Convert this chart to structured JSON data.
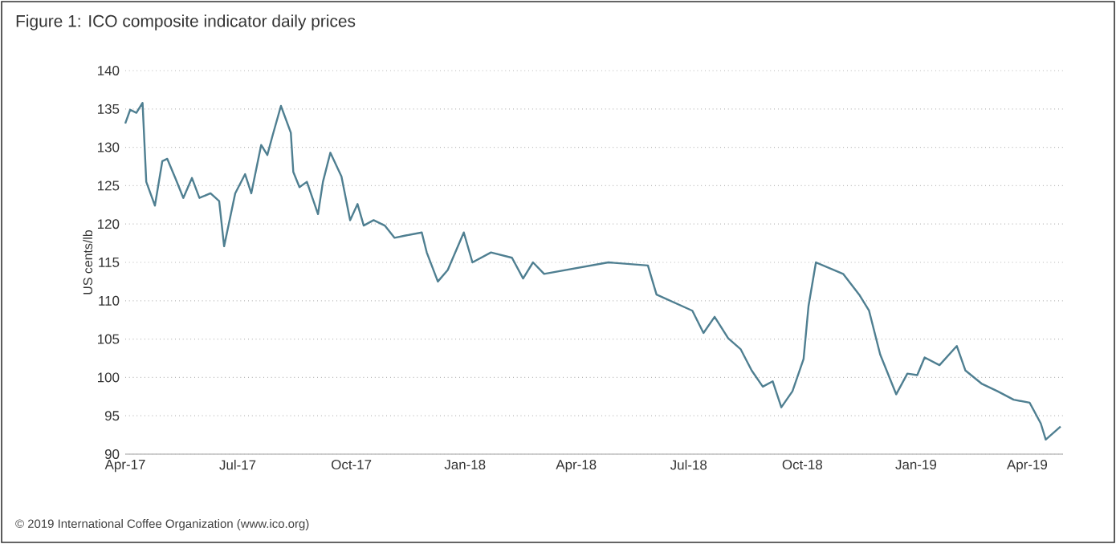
{
  "chart_data": {
    "type": "line",
    "title": "Figure 1: ICO composite indicator daily prices",
    "ylabel": "US cents/lb",
    "annotations": [
      "© 2019 International Coffee Organization (www.ico.org)"
    ],
    "xlim": [
      "2017-04-01",
      "2019-04-30"
    ],
    "xticks": [
      {
        "value": "2017-04-01",
        "label": "Apr-17"
      },
      {
        "value": "2017-07-01",
        "label": "Jul-17"
      },
      {
        "value": "2017-10-01",
        "label": "Oct-17"
      },
      {
        "value": "2018-01-01",
        "label": "Jan-18"
      },
      {
        "value": "2018-04-01",
        "label": "Apr-18"
      },
      {
        "value": "2018-07-01",
        "label": "Jul-18"
      },
      {
        "value": "2018-10-01",
        "label": "Oct-18"
      },
      {
        "value": "2019-01-01",
        "label": "Jan-19"
      },
      {
        "value": "2019-04-01",
        "label": "Apr-19"
      }
    ],
    "ylim": [
      90,
      140
    ],
    "yticks": [
      90,
      95,
      100,
      105,
      110,
      115,
      120,
      125,
      130,
      135,
      140
    ],
    "grid": "y",
    "series": [
      {
        "color": "#4f7f91",
        "x": [
          "2017-04-01",
          "2017-04-05",
          "2017-04-10",
          "2017-04-15",
          "2017-04-18",
          "2017-04-25",
          "2017-05-01",
          "2017-05-05",
          "2017-05-12",
          "2017-05-18",
          "2017-05-25",
          "2017-05-31",
          "2017-06-09",
          "2017-06-16",
          "2017-06-20",
          "2017-06-29",
          "2017-07-07",
          "2017-07-12",
          "2017-07-20",
          "2017-07-25",
          "2017-07-29",
          "2017-08-05",
          "2017-08-13",
          "2017-08-15",
          "2017-08-20",
          "2017-08-26",
          "2017-09-04",
          "2017-09-08",
          "2017-09-14",
          "2017-09-23",
          "2017-09-30",
          "2017-10-06",
          "2017-10-11",
          "2017-10-19",
          "2017-10-28",
          "2017-11-05",
          "2017-11-14",
          "2017-11-27",
          "2017-12-01",
          "2017-12-10",
          "2017-12-18",
          "2017-12-31",
          "2018-01-07",
          "2018-01-22",
          "2018-02-08",
          "2018-02-17",
          "2018-02-25",
          "2018-03-06",
          "2018-04-27",
          "2018-05-29",
          "2018-06-05",
          "2018-07-04",
          "2018-07-13",
          "2018-07-22",
          "2018-08-02",
          "2018-08-12",
          "2018-08-21",
          "2018-08-30",
          "2018-09-07",
          "2018-09-14",
          "2018-09-23",
          "2018-10-02",
          "2018-10-06",
          "2018-10-12",
          "2018-11-03",
          "2018-11-16",
          "2018-11-24",
          "2018-12-03",
          "2018-12-16",
          "2018-12-25",
          "2019-01-02",
          "2019-01-08",
          "2019-01-20",
          "2019-02-03",
          "2019-02-10",
          "2019-02-23",
          "2019-03-08",
          "2019-03-21",
          "2019-04-03",
          "2019-04-12",
          "2019-04-16",
          "2019-04-28"
        ],
        "values": [
          133.1,
          134.9,
          134.5,
          135.8,
          125.5,
          122.4,
          128.2,
          128.5,
          125.8,
          123.4,
          126,
          123.4,
          124,
          123,
          117.1,
          124,
          126.5,
          124,
          130.3,
          129,
          131.4,
          135.4,
          131.9,
          126.8,
          124.8,
          125.5,
          121.3,
          125.5,
          129.3,
          126.2,
          120.5,
          122.6,
          119.8,
          120.5,
          119.8,
          118.2,
          118.5,
          118.9,
          116.3,
          112.5,
          114,
          118.9,
          115,
          116.3,
          115.6,
          112.9,
          115,
          113.5,
          115,
          114.6,
          110.8,
          108.7,
          105.8,
          107.9,
          105.1,
          103.7,
          100.9,
          98.8,
          99.5,
          96.1,
          98.2,
          102.4,
          109.3,
          115,
          113.5,
          110.8,
          108.7,
          103,
          97.8,
          100.5,
          100.3,
          102.6,
          101.6,
          104.1,
          100.9,
          99.2,
          98.2,
          97.1,
          96.7,
          94,
          91.9,
          93.6
        ]
      }
    ]
  }
}
